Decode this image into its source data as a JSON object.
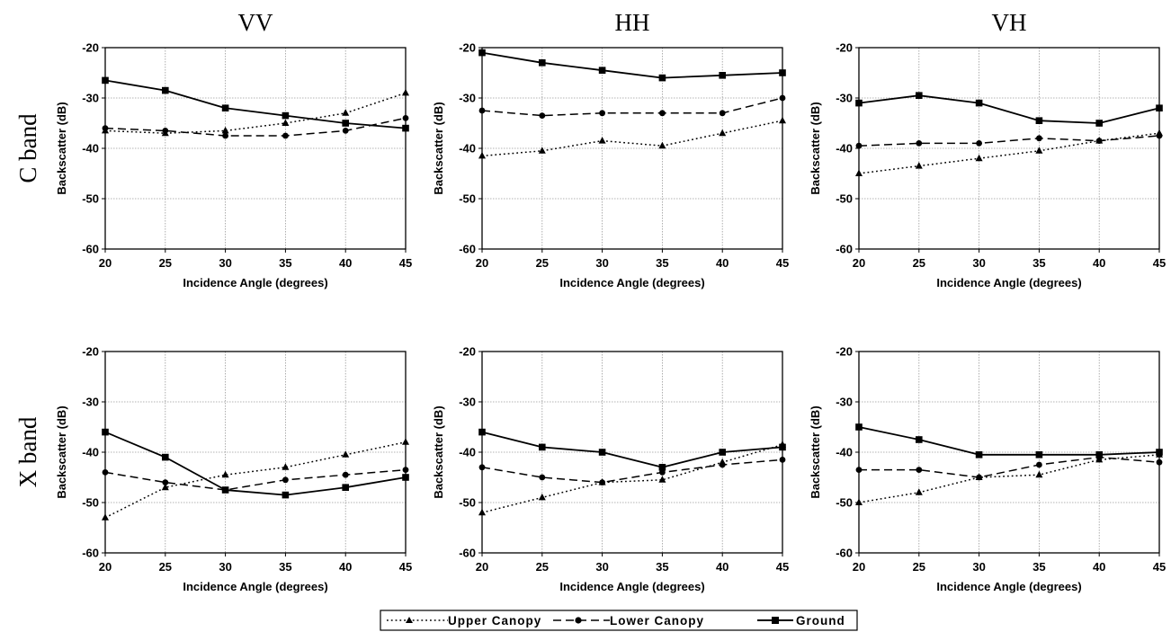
{
  "legend": {
    "items": [
      {
        "label": "Upper Canopy",
        "line": "dotted",
        "marker": "triangle"
      },
      {
        "label": "Lower Canopy",
        "line": "dashed",
        "marker": "circle"
      },
      {
        "label": "Ground",
        "line": "solid",
        "marker": "square"
      }
    ]
  },
  "colors": {
    "ink": "#000000",
    "grid": "#9a9a9a",
    "background": "#ffffff"
  },
  "chart_data": [
    {
      "type": "line",
      "column_title": "VV",
      "row_title": "C band",
      "xlabel": "Incidence Angle (degrees)",
      "ylabel": "Backscatter (dB)",
      "x": [
        20,
        25,
        30,
        35,
        40,
        45
      ],
      "xlim": [
        20,
        45
      ],
      "ylim": [
        -60,
        -20
      ],
      "xticks": [
        20,
        25,
        30,
        35,
        40,
        45
      ],
      "yticks": [
        -60,
        -50,
        -40,
        -30,
        -20
      ],
      "grid": true,
      "series": [
        {
          "name": "Upper Canopy",
          "values": [
            -36.5,
            -37,
            -36.5,
            -35,
            -33,
            -29
          ]
        },
        {
          "name": "Lower Canopy",
          "values": [
            -36,
            -36.5,
            -37.5,
            -37.5,
            -36.5,
            -34
          ]
        },
        {
          "name": "Ground",
          "values": [
            -26.5,
            -28.5,
            -32,
            -33.5,
            -35,
            -36
          ]
        }
      ]
    },
    {
      "type": "line",
      "column_title": "HH",
      "row_title": "",
      "xlabel": "Incidence Angle (degrees)",
      "ylabel": "Backscatter (dB)",
      "x": [
        20,
        25,
        30,
        35,
        40,
        45
      ],
      "xlim": [
        20,
        45
      ],
      "ylim": [
        -60,
        -20
      ],
      "xticks": [
        20,
        25,
        30,
        35,
        40,
        45
      ],
      "yticks": [
        -60,
        -50,
        -40,
        -30,
        -20
      ],
      "grid": true,
      "series": [
        {
          "name": "Upper Canopy",
          "values": [
            -41.5,
            -40.5,
            -38.5,
            -39.5,
            -37,
            -34.5
          ]
        },
        {
          "name": "Lower Canopy",
          "values": [
            -32.5,
            -33.5,
            -33,
            -33,
            -33,
            -30
          ]
        },
        {
          "name": "Ground",
          "values": [
            -21,
            -23,
            -24.5,
            -26,
            -25.5,
            -25
          ]
        }
      ]
    },
    {
      "type": "line",
      "column_title": "VH",
      "row_title": "",
      "xlabel": "Incidence Angle (degrees)",
      "ylabel": "Backscatter (dB)",
      "x": [
        20,
        25,
        30,
        35,
        40,
        45
      ],
      "xlim": [
        20,
        45
      ],
      "ylim": [
        -60,
        -20
      ],
      "xticks": [
        20,
        25,
        30,
        35,
        40,
        45
      ],
      "yticks": [
        -60,
        -50,
        -40,
        -30,
        -20
      ],
      "grid": true,
      "series": [
        {
          "name": "Upper Canopy",
          "values": [
            -45,
            -43.5,
            -42,
            -40.5,
            -38.5,
            -37
          ]
        },
        {
          "name": "Lower Canopy",
          "values": [
            -39.5,
            -39,
            -39,
            -38,
            -38.5,
            -37.5
          ]
        },
        {
          "name": "Ground",
          "values": [
            -31,
            -29.5,
            -31,
            -34.5,
            -35,
            -32
          ]
        }
      ]
    },
    {
      "type": "line",
      "column_title": "",
      "row_title": "X band",
      "xlabel": "Incidence Angle (degrees)",
      "ylabel": "Backscatter (dB)",
      "x": [
        20,
        25,
        30,
        35,
        40,
        45
      ],
      "xlim": [
        20,
        45
      ],
      "ylim": [
        -60,
        -20
      ],
      "xticks": [
        20,
        25,
        30,
        35,
        40,
        45
      ],
      "yticks": [
        -60,
        -50,
        -40,
        -30,
        -20
      ],
      "grid": true,
      "series": [
        {
          "name": "Upper Canopy",
          "values": [
            -53,
            -47,
            -44.5,
            -43,
            -40.5,
            -38
          ]
        },
        {
          "name": "Lower Canopy",
          "values": [
            -44,
            -46,
            -47.5,
            -45.5,
            -44.5,
            -43.5
          ]
        },
        {
          "name": "Ground",
          "values": [
            -36,
            -41,
            -47.5,
            -48.5,
            -47,
            -45
          ]
        }
      ]
    },
    {
      "type": "line",
      "column_title": "",
      "row_title": "",
      "xlabel": "Incidence Angle (degrees)",
      "ylabel": "Backscatter (dB)",
      "x": [
        20,
        25,
        30,
        35,
        40,
        45
      ],
      "xlim": [
        20,
        45
      ],
      "ylim": [
        -60,
        -20
      ],
      "xticks": [
        20,
        25,
        30,
        35,
        40,
        45
      ],
      "yticks": [
        -60,
        -50,
        -40,
        -30,
        -20
      ],
      "grid": true,
      "series": [
        {
          "name": "Upper Canopy",
          "values": [
            -52,
            -49,
            -46,
            -45.5,
            -42,
            -38.5
          ]
        },
        {
          "name": "Lower Canopy",
          "values": [
            -43,
            -45,
            -46,
            -44,
            -42.5,
            -41.5
          ]
        },
        {
          "name": "Ground",
          "values": [
            -36,
            -39,
            -40,
            -43,
            -40,
            -39
          ]
        }
      ]
    },
    {
      "type": "line",
      "column_title": "",
      "row_title": "",
      "xlabel": "Incidence Angle (degrees)",
      "ylabel": "Backscatter (dB)",
      "x": [
        20,
        25,
        30,
        35,
        40,
        45
      ],
      "xlim": [
        20,
        45
      ],
      "ylim": [
        -60,
        -20
      ],
      "xticks": [
        20,
        25,
        30,
        35,
        40,
        45
      ],
      "yticks": [
        -60,
        -50,
        -40,
        -30,
        -20
      ],
      "grid": true,
      "series": [
        {
          "name": "Upper Canopy",
          "values": [
            -50,
            -48,
            -45,
            -44.5,
            -41.5,
            -40.5
          ]
        },
        {
          "name": "Lower Canopy",
          "values": [
            -43.5,
            -43.5,
            -45,
            -42.5,
            -41,
            -42
          ]
        },
        {
          "name": "Ground",
          "values": [
            -35,
            -37.5,
            -40.5,
            -40.5,
            -40.5,
            -40
          ]
        }
      ]
    }
  ]
}
